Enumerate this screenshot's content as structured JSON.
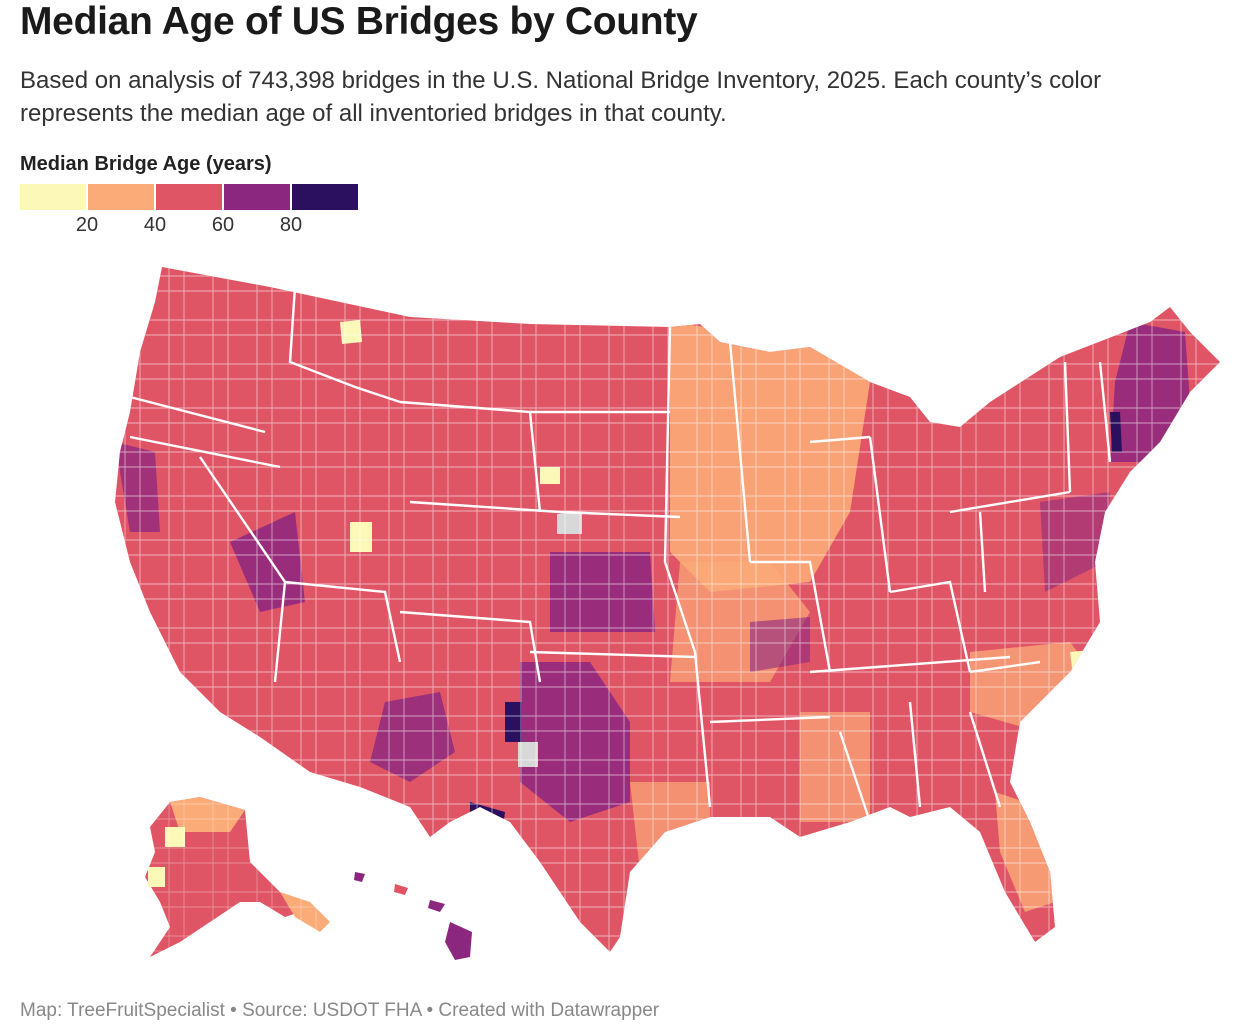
{
  "header": {
    "title": "Median Age of US Bridges by County",
    "subtitle": "Based on analysis of 743,398 bridges in the U.S. National Bridge Inventory, 2025. Each county’s color represents the median age of all inventoried bridges in that county."
  },
  "legend": {
    "title": "Median Bridge Age (years)",
    "swatches": [
      "#fbf8b8",
      "#fbab78",
      "#e05565",
      "#8c2780",
      "#2c1060"
    ],
    "ticks": [
      "20",
      "40",
      "60",
      "80"
    ]
  },
  "map": {
    "no_data_color": "#d8d8d8",
    "border_color": "#ffffff",
    "regions": [
      "contiguous-us",
      "alaska",
      "hawaii"
    ]
  },
  "footer": {
    "text": "Map: TreeFruitSpecialist • Source: USDOT FHA • Created with Datawrapper"
  }
}
